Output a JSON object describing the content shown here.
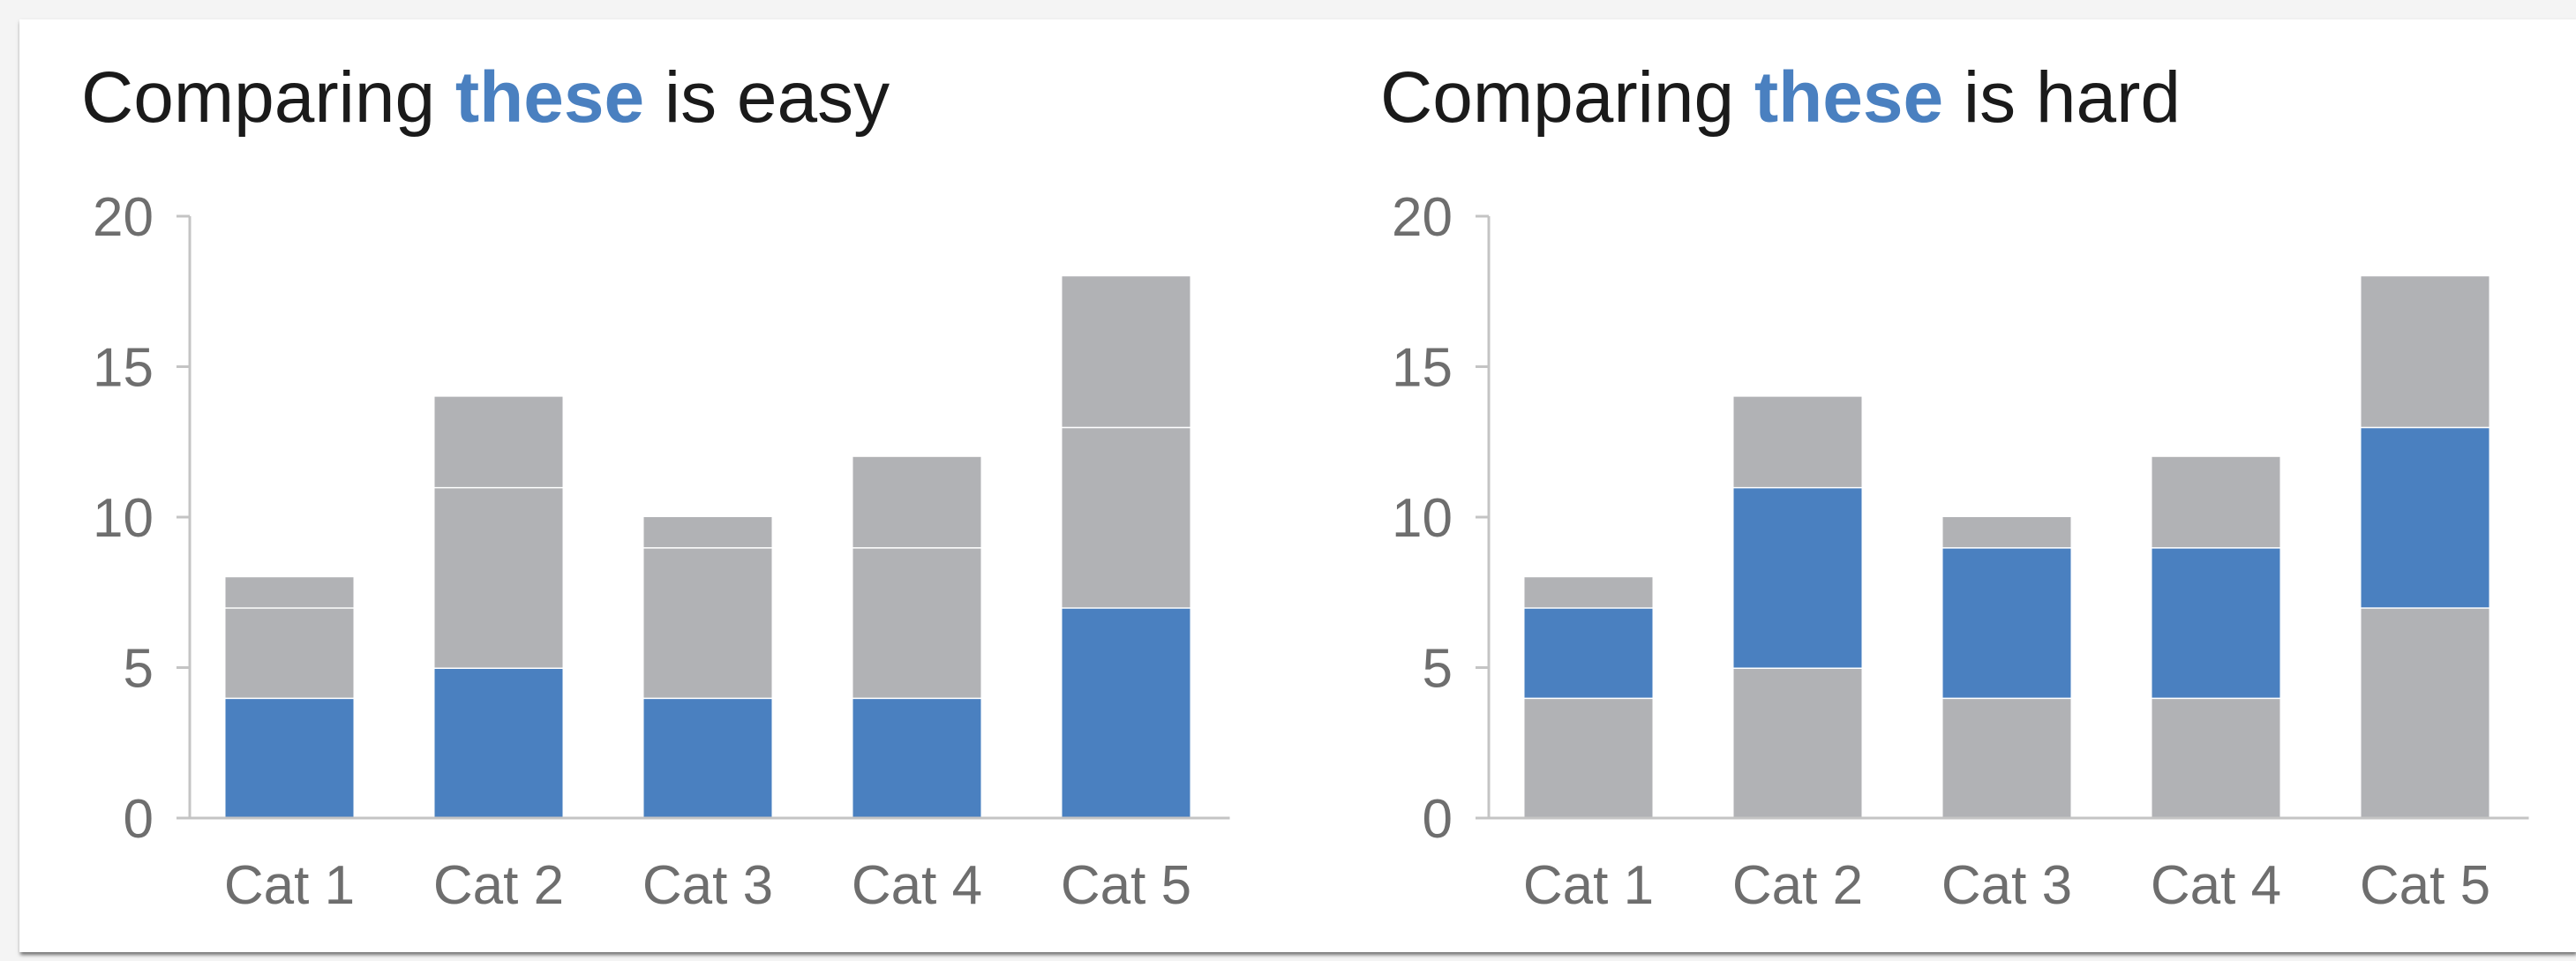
{
  "colors": {
    "highlight": "#4a80c0",
    "other": "#b1b2b5",
    "axis": "#c4c4c4",
    "title": "#1a1a1a"
  },
  "left_title": {
    "prefix": "Comparing ",
    "highlight": "these",
    "suffix": " is easy"
  },
  "right_title": {
    "prefix": "Comparing ",
    "highlight": "these",
    "suffix": " is hard"
  },
  "chart_data": [
    {
      "type": "bar",
      "stacked": true,
      "title": "Comparing these is easy",
      "categories": [
        "Cat 1",
        "Cat 2",
        "Cat 3",
        "Cat 4",
        "Cat 5"
      ],
      "ylim": [
        0,
        20
      ],
      "yticks": [
        0,
        5,
        10,
        15,
        20
      ],
      "grid": false,
      "highlighted_segment": 0,
      "series": [
        {
          "values": [
            4,
            5,
            4,
            4,
            7
          ],
          "color": "#4a80c0"
        },
        {
          "values": [
            3,
            6,
            5,
            5,
            6
          ],
          "color": "#b1b2b5"
        },
        {
          "values": [
            1,
            3,
            1,
            3,
            5
          ],
          "color": "#b1b2b5"
        }
      ]
    },
    {
      "type": "bar",
      "stacked": true,
      "title": "Comparing these is hard",
      "categories": [
        "Cat 1",
        "Cat 2",
        "Cat 3",
        "Cat 4",
        "Cat 5"
      ],
      "ylim": [
        0,
        20
      ],
      "yticks": [
        0,
        5,
        10,
        15,
        20
      ],
      "grid": false,
      "highlighted_segment": 1,
      "series": [
        {
          "values": [
            4,
            5,
            4,
            4,
            7
          ],
          "color": "#b1b2b5"
        },
        {
          "values": [
            3,
            6,
            5,
            5,
            6
          ],
          "color": "#4a80c0"
        },
        {
          "values": [
            1,
            3,
            1,
            3,
            5
          ],
          "color": "#b1b2b5"
        }
      ]
    }
  ]
}
